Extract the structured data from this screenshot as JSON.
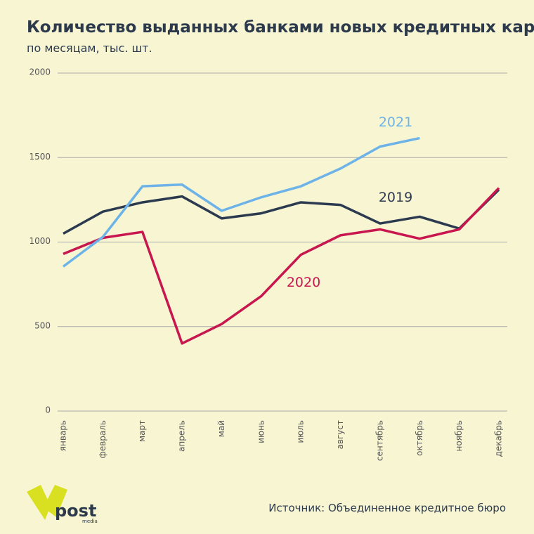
{
  "chart_data": {
    "type": "line",
    "title": "Количество выданных банками новых кредитных карт",
    "subtitle": "по месяцам, тыс. шт.",
    "categories": [
      "январь",
      "февраль",
      "март",
      "апрель",
      "май",
      "июнь",
      "июль",
      "август",
      "сентябрь",
      "октябрь",
      "ноябрь",
      "декабрь"
    ],
    "series": [
      {
        "name": "2019",
        "color": "#2b3a4f",
        "values": [
          1050,
          1180,
          1235,
          1270,
          1140,
          1170,
          1235,
          1220,
          1110,
          1150,
          1080,
          1310
        ]
      },
      {
        "name": "2020",
        "color": "#c8174f",
        "values": [
          930,
          1025,
          1060,
          400,
          515,
          680,
          925,
          1040,
          1075,
          1020,
          1075,
          1320
        ]
      },
      {
        "name": "2021",
        "color": "#6db3e8",
        "values": [
          855,
          1030,
          1330,
          1340,
          1185,
          1265,
          1330,
          1435,
          1565,
          1615,
          null,
          null
        ]
      }
    ],
    "ylim": [
      0,
      2000
    ],
    "yticks": [
      0,
      500,
      1000,
      1500,
      2000
    ],
    "grid": true,
    "source": "Источник: Объединенное кредитное бюро",
    "logo": {
      "text": "post",
      "sub": "media"
    }
  }
}
